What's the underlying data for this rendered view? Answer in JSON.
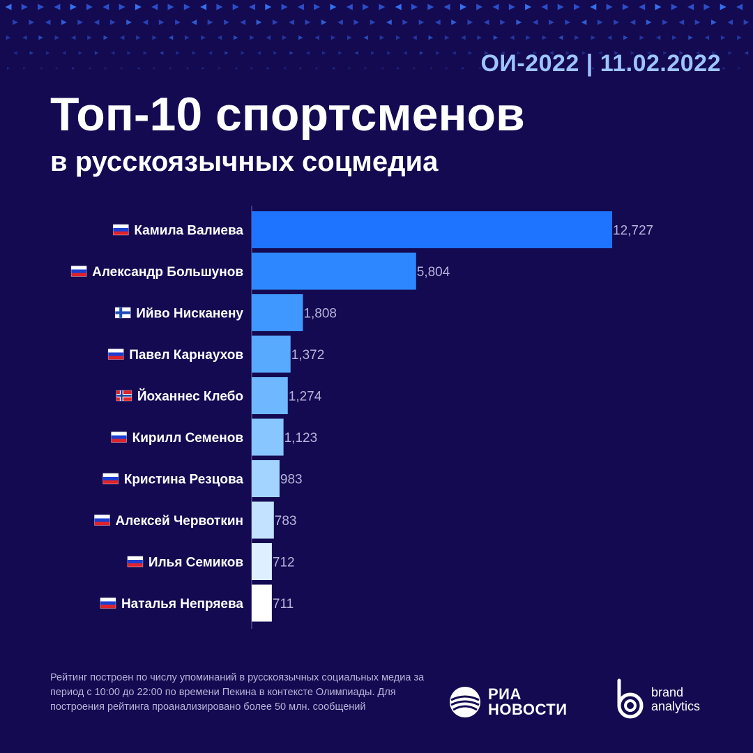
{
  "header": {
    "event_tag": "ОИ-2022 | 11.02.2022",
    "title": "Топ-10 спортсменов",
    "subtitle": "в русскоязычных соцмедиа"
  },
  "colors": {
    "background": "#140a52",
    "accent": "#9ec4ff",
    "bar_colors": [
      "#1e74ff",
      "#2d88ff",
      "#3e98ff",
      "#57aaff",
      "#6fb8ff",
      "#88c6ff",
      "#a3d4ff",
      "#c2e2ff",
      "#def0ff",
      "#ffffff"
    ]
  },
  "chart_data": {
    "type": "bar",
    "orientation": "horizontal",
    "categories": [
      "Камила Валиева",
      "Александр Большунов",
      "Ийво Нисканену",
      "Павел Карнаухов",
      "Йоханнес Клебо",
      "Кирилл Семенов",
      "Кристина Резцова",
      "Алексей Червоткин",
      "Илья Семиков",
      "Наталья Непряева"
    ],
    "flags": [
      "ru",
      "ru",
      "fi",
      "ru",
      "no",
      "ru",
      "ru",
      "ru",
      "ru",
      "ru"
    ],
    "values": [
      12727,
      5804,
      1808,
      1372,
      1274,
      1123,
      983,
      783,
      712,
      711
    ],
    "value_labels": [
      "12,727",
      "5,804",
      "1,808",
      "1,372",
      "1,274",
      "1,123",
      "983",
      "783",
      "712",
      "711"
    ],
    "title": "Топ-10 спортсменов",
    "xlabel": "",
    "ylabel": "",
    "xlim": [
      0,
      12727
    ],
    "grid": false
  },
  "footer": {
    "note": "Рейтинг построен по числу упоминаний в русскоязычных социальных медиа за период с 10:00 до 22:00 по времени Пекина в контексте Олимпиады. Для построения рейтинга проанализировано более 50 млн. сообщений",
    "ria_line1": "РИА",
    "ria_line2": "НОВОСТИ",
    "ba_line1": "brand",
    "ba_line2": "analytics"
  }
}
